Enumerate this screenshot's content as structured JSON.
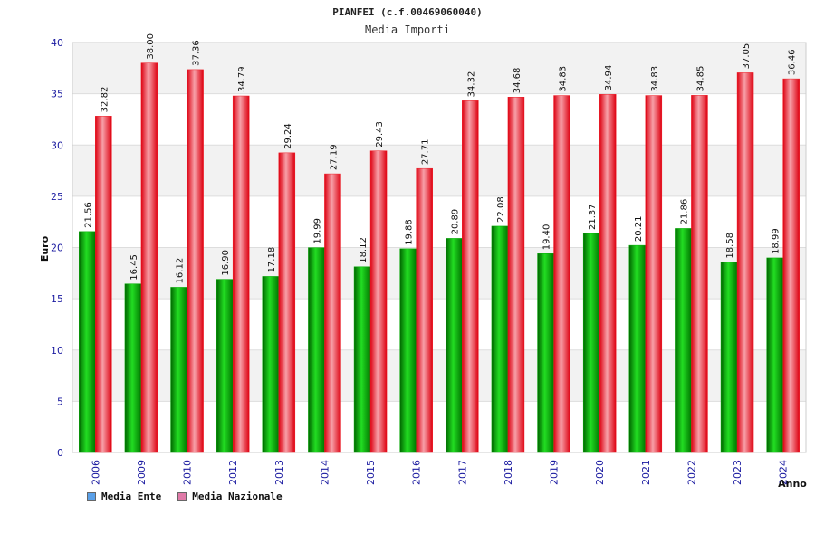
{
  "colors": {
    "ente": "#00aa00",
    "nazionale": "#ee1c25",
    "legend_ente": "#5aa0e8",
    "legend_nazionale": "#e07aa8",
    "tick_text": "#1a1aa0",
    "band": "#f2f2f2"
  },
  "chart_data": {
    "type": "bar",
    "title": "PIANFEI (c.f.00469060040)",
    "subtitle": "Media Importi",
    "xlabel": "Anno",
    "ylabel": "Euro",
    "ylim": [
      0,
      40
    ],
    "yticks": [
      0,
      5,
      10,
      15,
      20,
      25,
      30,
      35,
      40
    ],
    "categories": [
      "2006",
      "2009",
      "2010",
      "2012",
      "2013",
      "2014",
      "2015",
      "2016",
      "2017",
      "2018",
      "2019",
      "2020",
      "2021",
      "2022",
      "2023",
      "2024"
    ],
    "series": [
      {
        "name": "Media Ente",
        "values": [
          21.56,
          16.45,
          16.12,
          16.9,
          17.18,
          19.99,
          18.12,
          19.88,
          20.89,
          22.08,
          19.4,
          21.37,
          20.21,
          21.86,
          18.58,
          18.99
        ],
        "labels": [
          "21.56",
          "16.45",
          "16.12",
          "16.90",
          "17.18",
          "19.99",
          "18.12",
          "19.88",
          "20.89",
          "22.08",
          "19.40",
          "21.37",
          "20.21",
          "21.86",
          "18.58",
          "18.99"
        ]
      },
      {
        "name": "Media Nazionale",
        "values": [
          32.82,
          38.0,
          37.36,
          34.79,
          29.24,
          27.19,
          29.43,
          27.71,
          34.32,
          34.68,
          34.83,
          34.94,
          34.83,
          34.85,
          37.05,
          36.46
        ],
        "labels": [
          "32.82",
          "38.00",
          "37.36",
          "34.79",
          "29.24",
          "27.19",
          "29.43",
          "27.71",
          "34.32",
          "34.68",
          "34.83",
          "34.94",
          "34.83",
          "34.85",
          "37.05",
          "36.46"
        ]
      }
    ],
    "legend": [
      "Media Ente",
      "Media Nazionale"
    ],
    "legend_position": "bottom-left"
  }
}
